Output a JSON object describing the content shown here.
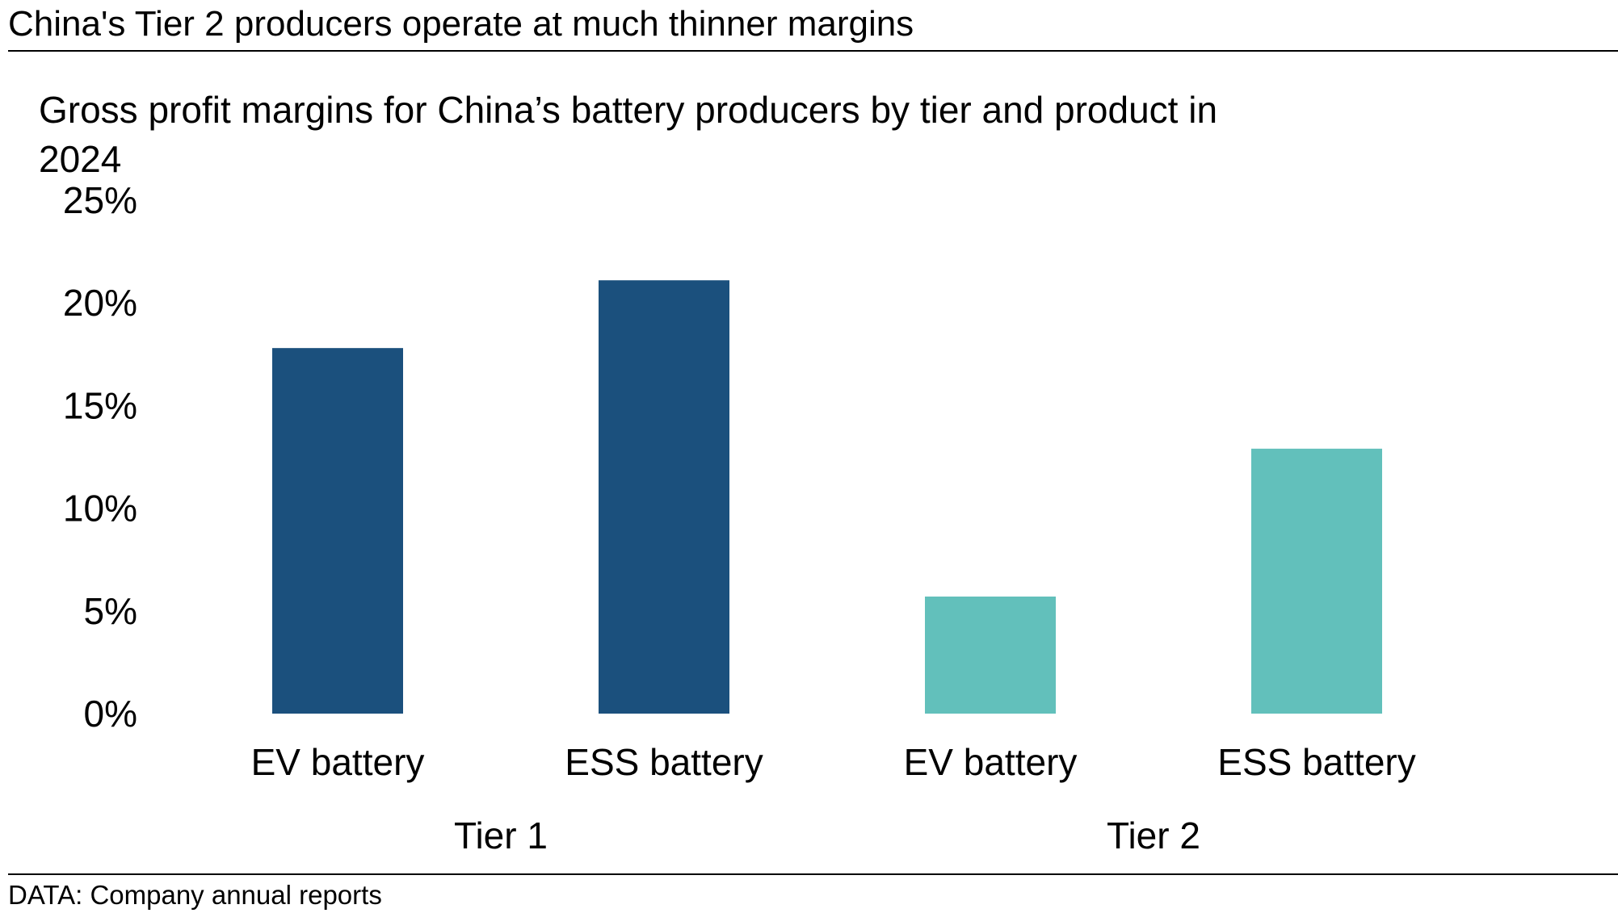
{
  "header": {
    "headline": "China's Tier 2 producers operate at much thinner margins",
    "source": "DATA: Company annual reports"
  },
  "chart_data": {
    "type": "bar",
    "title": "Gross profit margins for China’s battery producers by tier and product in 2024",
    "title_lines": [
      "Gross profit margins for China’s battery producers by tier and product in",
      "2024"
    ],
    "groups": [
      {
        "name": "Tier 1",
        "categories": [
          "EV battery",
          "ESS battery"
        ],
        "values": [
          17.8,
          21.1
        ],
        "color": "#1b507d"
      },
      {
        "name": "Tier 2",
        "categories": [
          "EV battery",
          "ESS battery"
        ],
        "values": [
          5.7,
          12.9
        ],
        "color": "#62c0bb"
      }
    ],
    "y_ticks": [
      0,
      5,
      10,
      15,
      20,
      25
    ],
    "y_tick_labels": [
      "0%",
      "5%",
      "10%",
      "15%",
      "20%",
      "25%"
    ],
    "ylim": [
      0,
      25
    ],
    "grid": false,
    "legend": "none"
  }
}
